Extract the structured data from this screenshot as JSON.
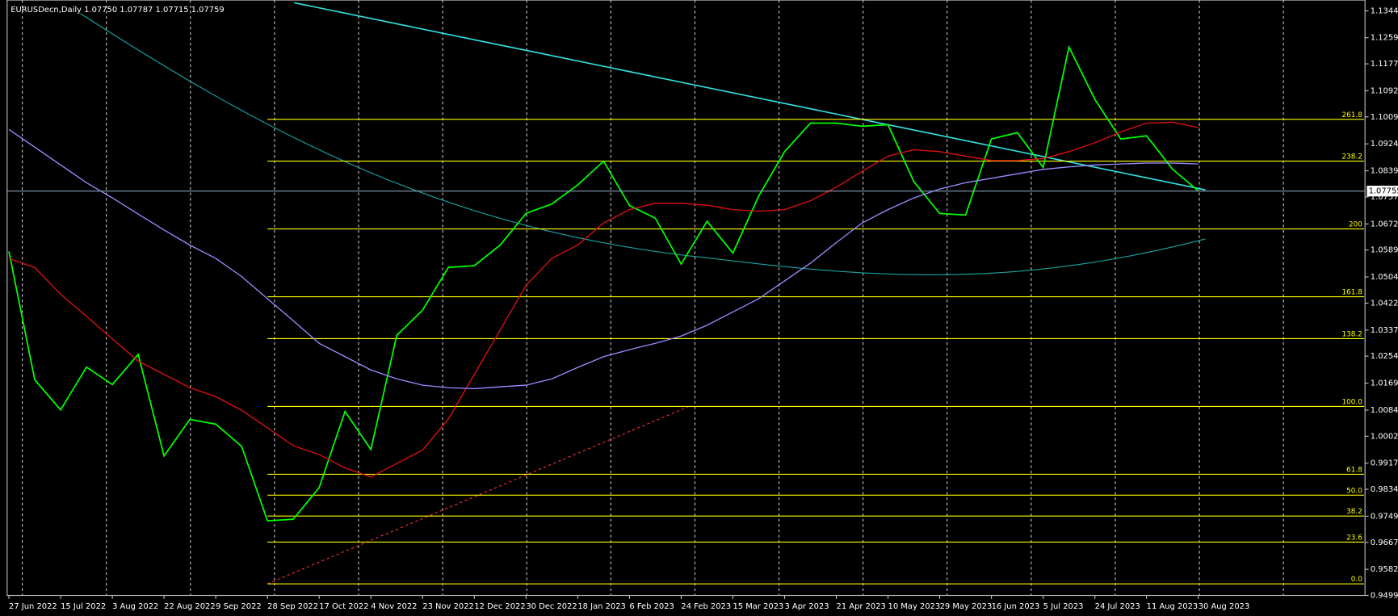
{
  "chart_data": {
    "type": "line",
    "title": "EURUSDecn,Daily  1.07750 1.07787 1.07715 1.07759",
    "categories": [
      "27 Jun 2022",
      null,
      "15 Jul 2022",
      null,
      "3 Aug 2022",
      null,
      "22 Aug 2022",
      null,
      "9 Sep 2022",
      null,
      "28 Sep 2022",
      null,
      "17 Oct 2022",
      null,
      "4 Nov 2022",
      null,
      "23 Nov 2022",
      null,
      "12 Dec 2022",
      null,
      "30 Dec 2022",
      null,
      "18 Jan 2023",
      null,
      "6 Feb 2023",
      null,
      "24 Feb 2023",
      null,
      "15 Mar 2023",
      null,
      "3 Apr 2023",
      null,
      "21 Apr 2023",
      null,
      "10 May 2023",
      null,
      "29 May 2023",
      null,
      "16 Jun 2023",
      null,
      "5 Jul 2023",
      null,
      "24 Jul 2023",
      null,
      "11 Aug 2023",
      null,
      "30 Aug 2023"
    ],
    "series": [
      {
        "color": "#00ff00",
        "values": [
          1.0585,
          1.018,
          1.0085,
          1.022,
          1.0165,
          1.026,
          0.994,
          1.0055,
          1.004,
          0.997,
          0.9735,
          0.974,
          0.984,
          1.008,
          0.996,
          1.032,
          1.04,
          1.0535,
          1.054,
          1.0605,
          1.0705,
          1.0735,
          1.0795,
          1.087,
          1.073,
          1.069,
          1.0545,
          1.068,
          1.058,
          1.076,
          1.09,
          1.099,
          1.099,
          1.098,
          1.0985,
          1.0805,
          1.0705,
          1.07,
          1.094,
          1.096,
          1.085,
          1.123,
          1.1065,
          1.094,
          1.095,
          1.0845,
          1.0776
        ]
      },
      {
        "color": "#e01010",
        "values": [
          1.0563,
          1.0534,
          1.045,
          1.038,
          1.0309,
          1.0239,
          1.0197,
          1.0155,
          1.0127,
          1.0084,
          1.0028,
          0.9972,
          0.9944,
          0.9902,
          0.9873,
          0.9916,
          0.9958,
          1.0057,
          1.0197,
          1.0337,
          1.0478,
          1.0563,
          1.0605,
          1.0675,
          1.0717,
          1.0737,
          1.0737,
          1.0731,
          1.0717,
          1.0712,
          1.0717,
          1.0745,
          1.0788,
          1.0838,
          1.0886,
          1.0906,
          1.09,
          1.0886,
          1.0872,
          1.0872,
          1.0878,
          1.09,
          1.0928,
          1.0962,
          1.099,
          1.0993,
          1.0976
        ]
      },
      {
        "color": "#9b8cff",
        "values": [
          1.097,
          1.0914,
          1.0858,
          1.0802,
          1.0754,
          1.0703,
          1.0653,
          1.0605,
          1.0563,
          1.0506,
          1.0436,
          1.0366,
          1.0295,
          1.0253,
          1.0211,
          1.0183,
          1.0163,
          1.0155,
          1.0152,
          1.0158,
          1.0163,
          1.0183,
          1.0219,
          1.0253,
          1.0275,
          1.0295,
          1.0318,
          1.0352,
          1.0394,
          1.0436,
          1.0492,
          1.0548,
          1.0613,
          1.0675,
          1.0717,
          1.0754,
          1.0782,
          1.0802,
          1.0816,
          1.083,
          1.0844,
          1.0852,
          1.0858,
          1.0861,
          1.0864,
          1.0864,
          1.0861
        ]
      }
    ],
    "ylim": [
      0.94995,
      1.13783
    ],
    "yticks": [
      1.13445,
      1.12595,
      {
        "value": 1.1177,
        "label": "1.11770"
      },
      {
        "value": 1.1092,
        "label": "1.10920"
      },
      1.10095,
      1.09245,
      1.08395,
      {
        "value": 1.0757,
        "label": "1.07570"
      },
      {
        "value": 1.0672,
        "label": "1.06720"
      },
      1.05895,
      1.05045,
      {
        "value": 1.0422,
        "label": "1.04220"
      },
      {
        "value": 1.0337,
        "label": "1.03370"
      },
      1.02545,
      1.01695,
      1.00845,
      {
        "value": 1.0002,
        "label": "1.00020"
      },
      {
        "value": 0.9917,
        "label": "0.99170"
      },
      0.98345,
      0.97495,
      {
        "value": 0.9667,
        "label": "0.96670"
      },
      {
        "value": 0.9582,
        "label": "0.95820"
      },
      0.94995
    ],
    "price_line": 1.07755,
    "fib_color": "#ffff00",
    "fib_levels": [
      {
        "label": "261.8",
        "price": 1.1002
      },
      {
        "label": "238.2",
        "price": 1.087
      },
      {
        "label": "200",
        "price": 1.0656
      },
      {
        "label": "161.8",
        "price": 1.0442
      },
      {
        "label": "138.2",
        "price": 1.031
      },
      {
        "label": "100.0",
        "price": 1.0096
      },
      {
        "label": "61.8",
        "price": 0.9882
      },
      {
        "label": "50.0",
        "price": 0.9816
      },
      {
        "label": "38.2",
        "price": 0.975
      },
      {
        "label": "23.6",
        "price": 0.9668
      },
      {
        "label": "0.0",
        "price": 0.9536
      }
    ]
  }
}
